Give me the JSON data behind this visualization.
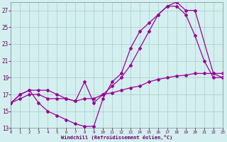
{
  "xlabel": "Windchill (Refroidissement éolien,°C)",
  "bg_color": "#d4efef",
  "grid_color": "#a8cccc",
  "line_color": "#990099",
  "x_min": 0,
  "x_max": 23,
  "y_min": 13,
  "y_max": 28,
  "yticks": [
    13,
    15,
    17,
    19,
    21,
    23,
    25,
    27
  ],
  "xticks": [
    0,
    1,
    2,
    3,
    4,
    5,
    6,
    7,
    8,
    9,
    10,
    11,
    12,
    13,
    14,
    15,
    16,
    17,
    18,
    19,
    20,
    21,
    22,
    23
  ],
  "line1_x": [
    0,
    1,
    2,
    3,
    4,
    5,
    6,
    7,
    8,
    9,
    10,
    11,
    12,
    13,
    14,
    15,
    16,
    17,
    18,
    19,
    20,
    22,
    23
  ],
  "line1_y": [
    16.0,
    17.0,
    17.5,
    16.0,
    15.0,
    14.5,
    14.0,
    13.5,
    13.2,
    13.2,
    16.5,
    18.5,
    19.5,
    22.5,
    24.5,
    25.5,
    26.5,
    27.5,
    28.0,
    27.0,
    27.0,
    19.5,
    19.0
  ],
  "line2_x": [
    0,
    1,
    2,
    3,
    4,
    5,
    6,
    7,
    8,
    9,
    10,
    11,
    12,
    13,
    14,
    15,
    16,
    17,
    18,
    19,
    20,
    21,
    22,
    23
  ],
  "line2_y": [
    16.0,
    17.0,
    17.5,
    17.5,
    17.5,
    17.0,
    16.5,
    16.2,
    18.5,
    16.0,
    17.0,
    18.0,
    19.0,
    20.5,
    22.5,
    24.5,
    26.5,
    27.5,
    27.5,
    26.5,
    24.0,
    21.0,
    19.0,
    19.0
  ],
  "line3_x": [
    0,
    1,
    2,
    3,
    4,
    5,
    6,
    7,
    8,
    9,
    10,
    11,
    12,
    13,
    14,
    15,
    16,
    17,
    18,
    19,
    20,
    21,
    22,
    23
  ],
  "line3_y": [
    16.0,
    16.5,
    17.0,
    17.0,
    16.5,
    16.5,
    16.5,
    16.2,
    16.5,
    16.5,
    17.0,
    17.2,
    17.5,
    17.8,
    18.0,
    18.5,
    18.8,
    19.0,
    19.2,
    19.3,
    19.5,
    19.5,
    19.5,
    19.5
  ]
}
